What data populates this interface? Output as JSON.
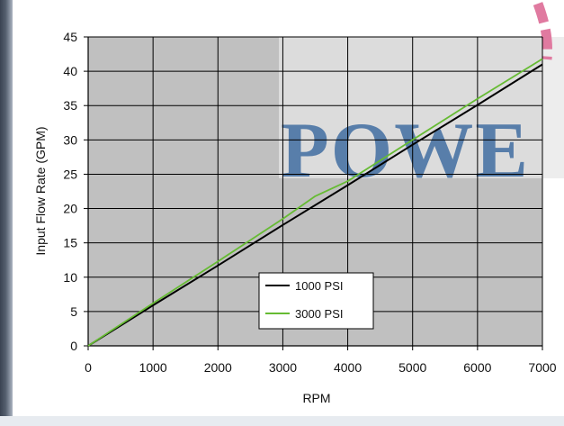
{
  "watermark": {
    "text": "POWE"
  },
  "chart_data": {
    "type": "line",
    "xlabel": "RPM",
    "ylabel": "Input Flow Rate (GPM)",
    "xlim": [
      0,
      7000
    ],
    "ylim": [
      0,
      45
    ],
    "x_ticks": [
      0,
      1000,
      2000,
      3000,
      4000,
      5000,
      6000,
      7000
    ],
    "y_ticks": [
      0,
      5,
      10,
      15,
      20,
      25,
      30,
      35,
      40,
      45
    ],
    "grid": true,
    "legend_position": "bottom-center",
    "series": [
      {
        "name": "1000 PSI",
        "color": "#000000",
        "x": [
          0,
          1000,
          2000,
          3000,
          4000,
          5000,
          6000,
          7000
        ],
        "y": [
          0,
          5.9,
          11.7,
          17.6,
          23.4,
          29.3,
          35.1,
          41.0
        ]
      },
      {
        "name": "3000 PSI",
        "color": "#66bb33",
        "x": [
          0,
          1000,
          2000,
          3000,
          3500,
          4000,
          5000,
          6000,
          7000
        ],
        "y": [
          0,
          6.2,
          12.3,
          18.5,
          21.8,
          24.0,
          30.0,
          36.0,
          41.8
        ]
      }
    ]
  }
}
